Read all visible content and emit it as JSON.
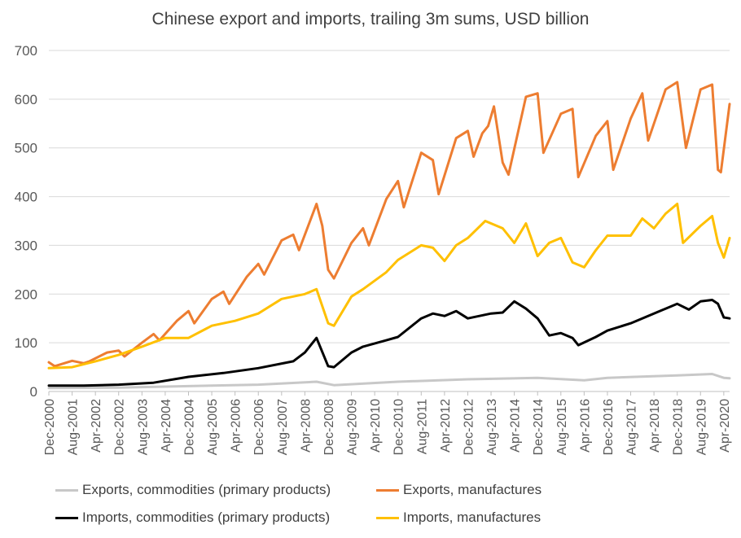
{
  "chart_data": {
    "type": "line",
    "title": "Chinese export and imports, trailing 3m sums, USD billion",
    "xlabel": "",
    "ylabel": "",
    "ylim": [
      0,
      700
    ],
    "yticks": [
      0,
      100,
      200,
      300,
      400,
      500,
      600,
      700
    ],
    "grid": true,
    "legend_position": "bottom",
    "x_start": "Dec-2000",
    "x_end": "Jun-2020",
    "xtick_labels": [
      "Dec-2000",
      "Aug-2001",
      "Apr-2002",
      "Dec-2002",
      "Aug-2003",
      "Apr-2004",
      "Dec-2004",
      "Aug-2005",
      "Apr-2006",
      "Dec-2006",
      "Aug-2007",
      "Apr-2008",
      "Dec-2008",
      "Aug-2009",
      "Apr-2010",
      "Dec-2010",
      "Aug-2011",
      "Apr-2012",
      "Dec-2012",
      "Aug-2013",
      "Apr-2014",
      "Dec-2014",
      "Aug-2015",
      "Apr-2016",
      "Dec-2016",
      "Aug-2017",
      "Apr-2018",
      "Dec-2018",
      "Aug-2019",
      "Apr-2020"
    ],
    "series": [
      {
        "name": "Exports, commodities (primary products)",
        "color": "#c8c8c8",
        "x": [
          "Dec-2000",
          "Dec-2002",
          "Dec-2004",
          "Dec-2006",
          "Aug-2008",
          "Feb-2009",
          "Dec-2010",
          "Dec-2012",
          "Dec-2014",
          "Apr-2016",
          "Dec-2016",
          "Dec-2018",
          "Dec-2019",
          "Apr-2020",
          "Jun-2020"
        ],
        "values": [
          7,
          8,
          11,
          14,
          20,
          13,
          20,
          25,
          28,
          23,
          28,
          33,
          36,
          28,
          27
        ]
      },
      {
        "name": "Exports, manufactures",
        "color": "#ed7d31",
        "x": [
          "Dec-2000",
          "Feb-2001",
          "Aug-2001",
          "Dec-2001",
          "Feb-2002",
          "Aug-2002",
          "Dec-2002",
          "Feb-2003",
          "Aug-2003",
          "Dec-2003",
          "Feb-2004",
          "Aug-2004",
          "Dec-2004",
          "Feb-2005",
          "Aug-2005",
          "Dec-2005",
          "Feb-2006",
          "Aug-2006",
          "Dec-2006",
          "Feb-2007",
          "Aug-2007",
          "Dec-2007",
          "Feb-2008",
          "Aug-2008",
          "Oct-2008",
          "Dec-2008",
          "Feb-2009",
          "Aug-2009",
          "Dec-2009",
          "Feb-2010",
          "Aug-2010",
          "Dec-2010",
          "Feb-2011",
          "Aug-2011",
          "Dec-2011",
          "Feb-2012",
          "Aug-2012",
          "Dec-2012",
          "Feb-2013",
          "May-2013",
          "Jul-2013",
          "Sep-2013",
          "Dec-2013",
          "Feb-2014",
          "Aug-2014",
          "Dec-2014",
          "Feb-2015",
          "Aug-2015",
          "Dec-2015",
          "Feb-2016",
          "Aug-2016",
          "Dec-2016",
          "Feb-2017",
          "Aug-2017",
          "Dec-2017",
          "Feb-2018",
          "Aug-2018",
          "Dec-2018",
          "Mar-2019",
          "Aug-2019",
          "Dec-2019",
          "Feb-2020",
          "Mar-2020",
          "Jun-2020"
        ],
        "values": [
          60,
          52,
          63,
          58,
          62,
          80,
          84,
          72,
          100,
          118,
          105,
          145,
          165,
          140,
          190,
          205,
          180,
          235,
          262,
          240,
          310,
          322,
          290,
          385,
          340,
          250,
          232,
          305,
          335,
          300,
          395,
          432,
          378,
          490,
          475,
          405,
          520,
          535,
          482,
          530,
          545,
          585,
          470,
          445,
          605,
          612,
          490,
          570,
          580,
          440,
          525,
          555,
          455,
          560,
          612,
          515,
          620,
          635,
          500,
          620,
          630,
          455,
          450,
          590
        ]
      },
      {
        "name": "Imports, commodities (primary products)",
        "color": "#000000",
        "x": [
          "Dec-2000",
          "Dec-2001",
          "Dec-2002",
          "Dec-2003",
          "Dec-2004",
          "Dec-2005",
          "Dec-2006",
          "Dec-2007",
          "Apr-2008",
          "Aug-2008",
          "Dec-2008",
          "Feb-2009",
          "Aug-2009",
          "Dec-2009",
          "Aug-2010",
          "Dec-2010",
          "Aug-2011",
          "Dec-2011",
          "Apr-2012",
          "Aug-2012",
          "Dec-2012",
          "Aug-2013",
          "Dec-2013",
          "Apr-2014",
          "Aug-2014",
          "Dec-2014",
          "Apr-2015",
          "Aug-2015",
          "Dec-2015",
          "Feb-2016",
          "Aug-2016",
          "Dec-2016",
          "Aug-2017",
          "Dec-2017",
          "Aug-2018",
          "Dec-2018",
          "Apr-2019",
          "Aug-2019",
          "Dec-2019",
          "Feb-2020",
          "Apr-2020",
          "Jun-2020"
        ],
        "values": [
          12,
          12,
          14,
          18,
          30,
          38,
          48,
          62,
          80,
          110,
          52,
          50,
          80,
          92,
          105,
          112,
          150,
          160,
          155,
          165,
          150,
          160,
          162,
          185,
          170,
          150,
          115,
          120,
          110,
          95,
          112,
          125,
          140,
          150,
          170,
          180,
          168,
          185,
          188,
          180,
          152,
          150
        ]
      },
      {
        "name": "Imports, manufactures",
        "color": "#ffc000",
        "x": [
          "Dec-2000",
          "Aug-2001",
          "Apr-2002",
          "Dec-2002",
          "Aug-2003",
          "Apr-2004",
          "Dec-2004",
          "Aug-2005",
          "Apr-2006",
          "Dec-2006",
          "Aug-2007",
          "Apr-2008",
          "Aug-2008",
          "Dec-2008",
          "Feb-2009",
          "Aug-2009",
          "Dec-2009",
          "Aug-2010",
          "Dec-2010",
          "Aug-2011",
          "Dec-2011",
          "Apr-2012",
          "Aug-2012",
          "Dec-2012",
          "Jun-2013",
          "Dec-2013",
          "Apr-2014",
          "Aug-2014",
          "Dec-2014",
          "Apr-2015",
          "Aug-2015",
          "Dec-2015",
          "Apr-2016",
          "Aug-2016",
          "Dec-2016",
          "Aug-2017",
          "Dec-2017",
          "Apr-2018",
          "Aug-2018",
          "Dec-2018",
          "Feb-2019",
          "Aug-2019",
          "Dec-2019",
          "Feb-2020",
          "Apr-2020",
          "Jun-2020"
        ],
        "values": [
          48,
          50,
          62,
          75,
          92,
          110,
          110,
          135,
          145,
          160,
          190,
          200,
          210,
          140,
          135,
          195,
          210,
          245,
          270,
          300,
          295,
          268,
          300,
          315,
          350,
          335,
          305,
          345,
          278,
          305,
          315,
          265,
          255,
          290,
          320,
          320,
          355,
          335,
          365,
          385,
          305,
          340,
          360,
          305,
          275,
          315
        ]
      }
    ]
  }
}
